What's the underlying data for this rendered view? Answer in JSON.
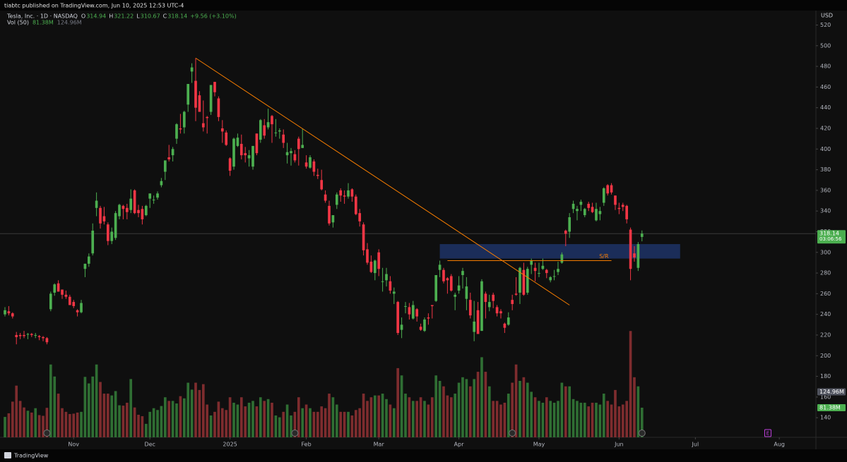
{
  "chart_data": {
    "type": "candlestick",
    "publisher_line": "tiabtc published on TradingView.com, Jun 10, 2025 12:53 UTC-4",
    "symbol": "Tesla, Inc. · 1D · NASDAQ",
    "ohlc_header": [
      {
        "label": "O",
        "value": "314.94"
      },
      {
        "label": "H",
        "value": "321.22"
      },
      {
        "label": "L",
        "value": "310.67"
      },
      {
        "label": "C",
        "value": "318.14"
      }
    ],
    "change": "+9.56 (+3.10%)",
    "volume_header": {
      "name": "Vol (50)",
      "volume": "81.38M",
      "average": "124.96M"
    },
    "currency": "USD",
    "brand": "TradingView",
    "up_color": "#4caf50",
    "down_color": "#f23645",
    "volume_up_color": "#2f6e33",
    "volume_down_color": "#7e2c2e",
    "candles": [
      [
        240,
        247,
        238,
        244
      ],
      [
        243,
        248,
        239,
        241
      ],
      [
        241,
        242,
        236,
        238
      ],
      [
        220,
        223,
        211,
        218
      ],
      [
        220,
        222,
        216,
        219
      ],
      [
        220,
        224,
        217,
        219
      ],
      [
        221,
        222,
        216,
        221
      ],
      [
        221,
        222,
        218,
        220
      ],
      [
        220,
        222,
        217,
        220
      ],
      [
        219,
        220,
        215,
        218
      ],
      [
        218,
        219,
        214,
        217
      ],
      [
        217,
        218,
        211,
        213
      ],
      [
        245,
        262,
        243,
        260
      ],
      [
        261,
        270,
        258,
        269
      ],
      [
        270,
        273,
        262,
        262
      ],
      [
        264,
        264,
        255,
        259
      ],
      [
        259,
        263,
        255,
        257
      ],
      [
        257,
        259,
        249,
        249
      ],
      [
        252,
        254,
        246,
        248
      ],
      [
        244,
        245,
        238,
        242
      ],
      [
        242,
        254,
        241,
        251
      ],
      [
        284,
        289,
        276,
        289
      ],
      [
        289,
        299,
        286,
        296
      ],
      [
        299,
        328,
        297,
        321
      ],
      [
        343,
        358,
        335,
        350
      ],
      [
        343,
        345,
        323,
        328
      ],
      [
        335,
        344,
        327,
        330
      ],
      [
        327,
        329,
        307,
        311
      ],
      [
        311,
        324,
        308,
        320
      ],
      [
        314,
        340,
        312,
        338
      ],
      [
        335,
        347,
        332,
        346
      ],
      [
        345,
        346,
        332,
        342
      ],
      [
        343,
        347,
        332,
        339
      ],
      [
        341,
        361,
        338,
        352
      ],
      [
        360,
        361,
        337,
        338
      ],
      [
        341,
        346,
        334,
        338
      ],
      [
        342,
        345,
        327,
        332
      ],
      [
        336,
        346,
        335,
        345
      ],
      [
        352,
        357,
        343,
        357
      ],
      [
        351,
        355,
        347,
        351
      ],
      [
        353,
        359,
        351,
        357
      ],
      [
        365,
        372,
        363,
        369
      ],
      [
        378,
        389,
        370,
        389
      ],
      [
        392,
        404,
        388,
        390
      ],
      [
        394,
        402,
        388,
        400
      ],
      [
        410,
        425,
        405,
        424
      ],
      [
        420,
        434,
        415,
        419
      ],
      [
        421,
        437,
        415,
        436
      ],
      [
        443,
        463,
        436,
        463
      ],
      [
        475,
        483,
        464,
        479
      ],
      [
        466,
        488,
        427,
        440
      ],
      [
        452,
        456,
        437,
        436
      ],
      [
        425,
        447,
        417,
        421
      ],
      [
        431,
        432,
        415,
        430
      ],
      [
        436,
        462,
        433,
        462
      ],
      [
        465,
        465,
        451,
        455
      ],
      [
        449,
        451,
        427,
        431
      ],
      [
        420,
        428,
        406,
        417
      ],
      [
        416,
        418,
        403,
        404
      ],
      [
        391,
        392,
        374,
        379
      ],
      [
        383,
        411,
        380,
        410
      ],
      [
        403,
        415,
        402,
        411
      ],
      [
        405,
        414,
        390,
        394
      ],
      [
        396,
        402,
        387,
        394
      ],
      [
        391,
        399,
        383,
        394
      ],
      [
        383,
        403,
        380,
        403
      ],
      [
        415,
        415,
        394,
        396
      ],
      [
        409,
        429,
        406,
        428
      ],
      [
        423,
        429,
        410,
        413
      ],
      [
        421,
        439,
        419,
        426
      ],
      [
        432,
        433,
        406,
        424
      ],
      [
        416,
        429,
        412,
        416
      ],
      [
        417,
        420,
        410,
        418
      ],
      [
        414,
        419,
        401,
        406
      ],
      [
        394,
        406,
        386,
        397
      ],
      [
        396,
        401,
        384,
        398
      ],
      [
        395,
        399,
        387,
        389
      ],
      [
        410,
        412,
        384,
        400
      ],
      [
        401,
        420,
        401,
        404
      ],
      [
        387,
        394,
        381,
        383
      ],
      [
        382,
        394,
        381,
        392
      ],
      [
        388,
        390,
        374,
        378
      ],
      [
        375,
        381,
        371,
        374
      ],
      [
        370,
        380,
        360,
        361
      ],
      [
        356,
        360,
        348,
        350
      ],
      [
        345,
        350,
        326,
        328
      ],
      [
        329,
        336,
        324,
        336
      ],
      [
        346,
        358,
        342,
        356
      ],
      [
        360,
        362,
        349,
        355
      ],
      [
        355,
        360,
        347,
        354
      ],
      [
        354,
        367,
        352,
        360
      ],
      [
        361,
        362,
        349,
        354
      ],
      [
        354,
        356,
        336,
        337
      ],
      [
        338,
        342,
        325,
        330
      ],
      [
        327,
        329,
        297,
        302
      ],
      [
        303,
        309,
        288,
        290
      ],
      [
        291,
        297,
        280,
        281
      ],
      [
        280,
        293,
        273,
        292
      ],
      [
        300,
        303,
        277,
        284
      ],
      [
        272,
        285,
        262,
        272
      ],
      [
        273,
        285,
        267,
        279
      ],
      [
        272,
        277,
        260,
        263
      ],
      [
        260,
        266,
        250,
        262
      ],
      [
        252,
        253,
        220,
        222
      ],
      [
        225,
        237,
        217,
        230
      ],
      [
        248,
        252,
        241,
        248
      ],
      [
        247,
        251,
        235,
        240
      ],
      [
        236,
        253,
        235,
        249
      ],
      [
        245,
        246,
        233,
        238
      ],
      [
        228,
        231,
        224,
        225
      ],
      [
        224,
        237,
        223,
        235
      ],
      [
        237,
        241,
        230,
        236
      ],
      [
        249,
        249,
        236,
        248
      ],
      [
        253,
        278,
        252,
        278
      ],
      [
        283,
        292,
        276,
        288
      ],
      [
        283,
        285,
        270,
        272
      ],
      [
        275,
        276,
        260,
        273
      ],
      [
        277,
        279,
        262,
        263
      ],
      [
        257,
        261,
        244,
        259
      ],
      [
        263,
        277,
        260,
        268
      ],
      [
        278,
        285,
        265,
        282
      ],
      [
        255,
        276,
        244,
        267
      ],
      [
        254,
        261,
        236,
        239
      ],
      [
        223,
        253,
        214,
        233
      ],
      [
        244,
        252,
        222,
        221
      ],
      [
        224,
        274,
        224,
        272
      ],
      [
        260,
        262,
        236,
        252
      ],
      [
        247,
        259,
        243,
        252
      ],
      [
        259,
        261,
        246,
        253
      ],
      [
        247,
        249,
        238,
        241
      ],
      [
        243,
        245,
        236,
        241
      ],
      [
        231,
        232,
        222,
        227
      ],
      [
        230,
        242,
        229,
        237
      ],
      [
        254,
        259,
        244,
        250
      ],
      [
        260,
        276,
        258,
        259
      ],
      [
        261,
        286,
        250,
        285
      ],
      [
        283,
        290,
        258,
        259
      ],
      [
        261,
        286,
        259,
        284
      ],
      [
        288,
        294,
        279,
        292
      ],
      [
        285,
        290,
        272,
        282
      ],
      [
        280,
        290,
        276,
        280
      ],
      [
        284,
        294,
        283,
        287
      ],
      [
        283,
        284,
        275,
        280
      ],
      [
        273,
        277,
        271,
        276
      ],
      [
        277,
        283,
        273,
        277
      ],
      [
        281,
        291,
        278,
        284
      ],
      [
        290,
        300,
        289,
        298
      ],
      [
        321,
        322,
        306,
        318
      ],
      [
        320,
        338,
        314,
        334
      ],
      [
        342,
        350,
        338,
        347
      ],
      [
        340,
        345,
        331,
        342
      ],
      [
        346,
        351,
        340,
        349
      ],
      [
        336,
        343,
        334,
        342
      ],
      [
        347,
        349,
        340,
        343
      ],
      [
        344,
        348,
        338,
        339
      ],
      [
        331,
        348,
        330,
        342
      ],
      [
        337,
        344,
        331,
        340
      ],
      [
        348,
        363,
        345,
        362
      ],
      [
        365,
        366,
        355,
        357
      ],
      [
        365,
        367,
        356,
        358
      ],
      [
        355,
        355,
        341,
        346
      ],
      [
        343,
        348,
        337,
        342
      ],
      [
        346,
        348,
        340,
        344
      ],
      [
        345,
        346,
        328,
        332
      ],
      [
        322,
        324,
        273,
        284
      ],
      [
        299,
        306,
        291,
        295
      ],
      [
        285,
        310,
        282,
        308
      ],
      [
        314.94,
        321.22,
        310.67,
        318.14
      ]
    ],
    "volume": [
      56,
      66,
      98,
      142,
      100,
      82,
      73,
      68,
      80,
      61,
      59,
      81,
      200,
      167,
      120,
      80,
      70,
      64,
      65,
      68,
      70,
      166,
      148,
      167,
      200,
      152,
      120,
      120,
      115,
      127,
      88,
      87,
      95,
      160,
      82,
      62,
      58,
      37,
      70,
      80,
      75,
      86,
      110,
      100,
      100,
      93,
      113,
      107,
      150,
      131,
      150,
      130,
      146,
      90,
      60,
      70,
      98,
      80,
      75,
      110,
      95,
      90,
      110,
      85,
      95,
      100,
      85,
      110,
      100,
      105,
      95,
      60,
      55,
      70,
      90,
      60,
      70,
      110,
      80,
      90,
      80,
      70,
      70,
      85,
      80,
      120,
      110,
      90,
      70,
      70,
      70,
      60,
      75,
      80,
      120,
      100,
      110,
      115,
      115,
      120,
      105,
      90,
      80,
      190,
      170,
      120,
      110,
      100,
      100,
      110,
      100,
      90,
      110,
      170,
      155,
      140,
      115,
      110,
      120,
      150,
      165,
      160,
      140,
      160,
      180,
      220,
      180,
      140,
      100,
      100,
      90,
      95,
      120,
      150,
      200,
      155,
      165,
      150,
      125,
      110,
      100,
      95,
      110,
      100,
      95,
      100,
      150,
      140,
      140,
      105,
      100,
      95,
      95,
      85,
      95,
      95,
      90,
      120,
      100,
      90,
      130,
      85,
      90,
      100,
      292,
      165,
      140,
      81.38
    ],
    "xlim": [
      -1.3,
      212.6
    ],
    "xticks": [
      {
        "value": 18,
        "label": "Nov"
      },
      {
        "value": 38,
        "label": "Dec"
      },
      {
        "value": 59,
        "label": "2025"
      },
      {
        "value": 79,
        "label": "Feb"
      },
      {
        "value": 98,
        "label": "Mar"
      },
      {
        "value": 119,
        "label": "Apr"
      },
      {
        "value": 140,
        "label": "May"
      },
      {
        "value": 161,
        "label": "Jun"
      },
      {
        "value": 181,
        "label": "Jul"
      },
      {
        "value": 203,
        "label": "Aug"
      }
    ],
    "ylim": [
      121,
      534
    ],
    "yticks": [
      140,
      160,
      180,
      200,
      220,
      240,
      260,
      280,
      300,
      320,
      340,
      360,
      380,
      400,
      420,
      440,
      460,
      480,
      500,
      520
    ],
    "volume_lim": [
      0,
      1172
    ],
    "volume_labels": [
      {
        "value": 124.96,
        "label": "124.96M"
      },
      {
        "value": 81.38,
        "label": "81.38M"
      }
    ],
    "last_price": {
      "value": 318.14,
      "label": "318.14",
      "countdown": "03:06:56"
    },
    "trendline": {
      "x": [
        50,
        148
      ],
      "y": [
        488,
        249
      ],
      "color": "#f57c00"
    },
    "zone": {
      "x": [
        114,
        177
      ],
      "y": [
        294,
        308
      ],
      "color": "#1c2f5e"
    },
    "sr_line": {
      "x": [
        116,
        159
      ],
      "y": 292,
      "label": "S/R",
      "color": "#f57c00"
    },
    "event_icons": [
      11,
      76,
      133,
      167
    ],
    "upcoming_event": {
      "x": 200,
      "label": "E"
    }
  }
}
